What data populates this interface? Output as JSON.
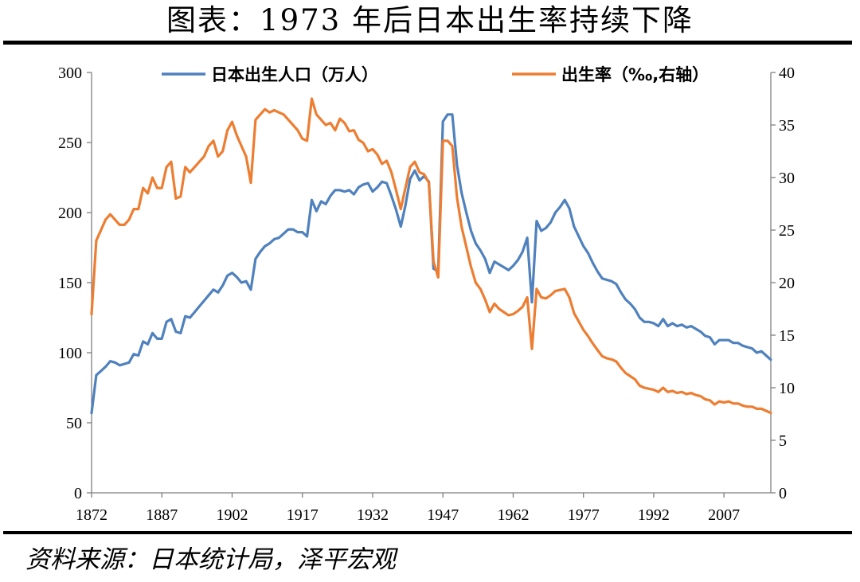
{
  "title": "图表：1973 年后日本出生率持续下降",
  "source": "资料来源：日本统计局，泽平宏观",
  "colors": {
    "births": "#4f81bd",
    "rate": "#ed7d31",
    "axis": "#7f7f7f"
  },
  "chart_data": {
    "type": "line",
    "legend": {
      "placement": "top"
    },
    "grid": false,
    "x_ticks": [
      1872,
      1887,
      1902,
      1917,
      1932,
      1947,
      1962,
      1977,
      1992,
      2007
    ],
    "xlim": [
      1872,
      2017
    ],
    "y_left": {
      "ticks": [
        0,
        50,
        100,
        150,
        200,
        250,
        300
      ],
      "range": [
        0,
        300
      ]
    },
    "y_right": {
      "ticks": [
        0,
        5,
        10,
        15,
        20,
        25,
        30,
        35,
        40
      ],
      "range": [
        0,
        40
      ]
    },
    "series": [
      {
        "name": "日本出生人口（万人）",
        "axis": "left",
        "points": [
          [
            1872,
            57
          ],
          [
            1873,
            84
          ],
          [
            1874,
            87
          ],
          [
            1875,
            90
          ],
          [
            1876,
            94
          ],
          [
            1877,
            93
          ],
          [
            1878,
            91
          ],
          [
            1879,
            92
          ],
          [
            1880,
            93
          ],
          [
            1881,
            99
          ],
          [
            1882,
            98
          ],
          [
            1883,
            108
          ],
          [
            1884,
            106
          ],
          [
            1885,
            114
          ],
          [
            1886,
            110
          ],
          [
            1887,
            110
          ],
          [
            1888,
            122
          ],
          [
            1889,
            124
          ],
          [
            1890,
            115
          ],
          [
            1891,
            114
          ],
          [
            1892,
            126
          ],
          [
            1893,
            125
          ],
          [
            1894,
            129
          ],
          [
            1895,
            133
          ],
          [
            1896,
            137
          ],
          [
            1897,
            141
          ],
          [
            1898,
            145
          ],
          [
            1899,
            143
          ],
          [
            1900,
            148
          ],
          [
            1901,
            155
          ],
          [
            1902,
            157
          ],
          [
            1903,
            154
          ],
          [
            1904,
            150
          ],
          [
            1905,
            151
          ],
          [
            1906,
            145
          ],
          [
            1907,
            167
          ],
          [
            1908,
            172
          ],
          [
            1909,
            176
          ],
          [
            1910,
            178
          ],
          [
            1911,
            181
          ],
          [
            1912,
            182
          ],
          [
            1913,
            185
          ],
          [
            1914,
            188
          ],
          [
            1915,
            188
          ],
          [
            1916,
            186
          ],
          [
            1917,
            186
          ],
          [
            1918,
            183
          ],
          [
            1919,
            209
          ],
          [
            1920,
            201
          ],
          [
            1921,
            208
          ],
          [
            1922,
            206
          ],
          [
            1923,
            212
          ],
          [
            1924,
            216
          ],
          [
            1925,
            216
          ],
          [
            1926,
            215
          ],
          [
            1927,
            216
          ],
          [
            1928,
            213
          ],
          [
            1929,
            218
          ],
          [
            1930,
            220
          ],
          [
            1931,
            221
          ],
          [
            1932,
            215
          ],
          [
            1933,
            218
          ],
          [
            1934,
            222
          ],
          [
            1935,
            221
          ],
          [
            1936,
            212
          ],
          [
            1937,
            202
          ],
          [
            1938,
            190
          ],
          [
            1939,
            205
          ],
          [
            1940,
            224
          ],
          [
            1941,
            230
          ],
          [
            1942,
            223
          ],
          [
            1943,
            226
          ],
          [
            1944,
            222
          ],
          [
            1945,
            160
          ],
          [
            1946,
            158
          ],
          [
            1947,
            265
          ],
          [
            1948,
            270
          ],
          [
            1949,
            270
          ],
          [
            1950,
            234
          ],
          [
            1951,
            214
          ],
          [
            1952,
            200
          ],
          [
            1953,
            187
          ],
          [
            1954,
            178
          ],
          [
            1955,
            173
          ],
          [
            1956,
            167
          ],
          [
            1957,
            157
          ],
          [
            1958,
            165
          ],
          [
            1959,
            163
          ],
          [
            1960,
            161
          ],
          [
            1961,
            159
          ],
          [
            1962,
            162
          ],
          [
            1963,
            166
          ],
          [
            1964,
            172
          ],
          [
            1965,
            182
          ],
          [
            1966,
            136
          ],
          [
            1967,
            194
          ],
          [
            1968,
            187
          ],
          [
            1969,
            189
          ],
          [
            1970,
            193
          ],
          [
            1971,
            200
          ],
          [
            1972,
            204
          ],
          [
            1973,
            209
          ],
          [
            1974,
            203
          ],
          [
            1975,
            190
          ],
          [
            1976,
            183
          ],
          [
            1977,
            176
          ],
          [
            1978,
            171
          ],
          [
            1979,
            164
          ],
          [
            1980,
            158
          ],
          [
            1981,
            153
          ],
          [
            1982,
            152
          ],
          [
            1983,
            151
          ],
          [
            1984,
            149
          ],
          [
            1985,
            143
          ],
          [
            1986,
            138
          ],
          [
            1987,
            135
          ],
          [
            1988,
            131
          ],
          [
            1989,
            125
          ],
          [
            1990,
            122
          ],
          [
            1991,
            122
          ],
          [
            1992,
            121
          ],
          [
            1993,
            119
          ],
          [
            1994,
            124
          ],
          [
            1995,
            119
          ],
          [
            1996,
            121
          ],
          [
            1997,
            119
          ],
          [
            1998,
            120
          ],
          [
            1999,
            118
          ],
          [
            2000,
            119
          ],
          [
            2001,
            117
          ],
          [
            2002,
            115
          ],
          [
            2003,
            112
          ],
          [
            2004,
            111
          ],
          [
            2005,
            106
          ],
          [
            2006,
            109
          ],
          [
            2007,
            109
          ],
          [
            2008,
            109
          ],
          [
            2009,
            107
          ],
          [
            2010,
            107
          ],
          [
            2011,
            105
          ],
          [
            2012,
            104
          ],
          [
            2013,
            103
          ],
          [
            2014,
            100
          ],
          [
            2015,
            101
          ],
          [
            2016,
            98
          ],
          [
            2017,
            95
          ]
        ]
      },
      {
        "name": "出生率（‰,右轴）",
        "axis": "right",
        "points": [
          [
            1872,
            17
          ],
          [
            1873,
            24
          ],
          [
            1874,
            25
          ],
          [
            1875,
            26
          ],
          [
            1876,
            26.5
          ],
          [
            1877,
            26
          ],
          [
            1878,
            25.5
          ],
          [
            1879,
            25.5
          ],
          [
            1880,
            26
          ],
          [
            1881,
            27
          ],
          [
            1882,
            27
          ],
          [
            1883,
            29
          ],
          [
            1884,
            28.5
          ],
          [
            1885,
            30
          ],
          [
            1886,
            29
          ],
          [
            1887,
            29
          ],
          [
            1888,
            31
          ],
          [
            1889,
            31.5
          ],
          [
            1890,
            28
          ],
          [
            1891,
            28.2
          ],
          [
            1892,
            31
          ],
          [
            1893,
            30.5
          ],
          [
            1894,
            31
          ],
          [
            1895,
            31.5
          ],
          [
            1896,
            32
          ],
          [
            1897,
            33
          ],
          [
            1898,
            33.5
          ],
          [
            1899,
            32
          ],
          [
            1900,
            32.5
          ],
          [
            1901,
            34.5
          ],
          [
            1902,
            35.3
          ],
          [
            1903,
            34
          ],
          [
            1904,
            33
          ],
          [
            1905,
            32
          ],
          [
            1906,
            29.5
          ],
          [
            1907,
            35.5
          ],
          [
            1908,
            36
          ],
          [
            1909,
            36.5
          ],
          [
            1910,
            36.2
          ],
          [
            1911,
            36.4
          ],
          [
            1912,
            36.2
          ],
          [
            1913,
            36
          ],
          [
            1914,
            35.5
          ],
          [
            1915,
            35
          ],
          [
            1916,
            34.5
          ],
          [
            1917,
            33.7
          ],
          [
            1918,
            33.5
          ],
          [
            1919,
            37.5
          ],
          [
            1920,
            36
          ],
          [
            1921,
            35.5
          ],
          [
            1922,
            35
          ],
          [
            1923,
            35.2
          ],
          [
            1924,
            34.5
          ],
          [
            1925,
            35.6
          ],
          [
            1926,
            35.2
          ],
          [
            1927,
            34.4
          ],
          [
            1928,
            34.5
          ],
          [
            1929,
            33.6
          ],
          [
            1930,
            33.3
          ],
          [
            1931,
            32.5
          ],
          [
            1932,
            32.7
          ],
          [
            1933,
            32.2
          ],
          [
            1934,
            31.3
          ],
          [
            1935,
            31.6
          ],
          [
            1936,
            30.5
          ],
          [
            1937,
            28.8
          ],
          [
            1938,
            27
          ],
          [
            1939,
            29
          ],
          [
            1940,
            31
          ],
          [
            1941,
            31.5
          ],
          [
            1942,
            30.5
          ],
          [
            1943,
            30.3
          ],
          [
            1944,
            29.5
          ],
          [
            1945,
            22
          ],
          [
            1946,
            20.5
          ],
          [
            1947,
            33.5
          ],
          [
            1948,
            33.5
          ],
          [
            1949,
            33
          ],
          [
            1950,
            28.1
          ],
          [
            1951,
            25.3
          ],
          [
            1952,
            23.4
          ],
          [
            1953,
            21.5
          ],
          [
            1954,
            20
          ],
          [
            1955,
            19.4
          ],
          [
            1956,
            18.4
          ],
          [
            1957,
            17.2
          ],
          [
            1958,
            18
          ],
          [
            1959,
            17.5
          ],
          [
            1960,
            17.2
          ],
          [
            1961,
            16.9
          ],
          [
            1962,
            17
          ],
          [
            1963,
            17.3
          ],
          [
            1964,
            17.7
          ],
          [
            1965,
            18.6
          ],
          [
            1966,
            13.7
          ],
          [
            1967,
            19.4
          ],
          [
            1968,
            18.6
          ],
          [
            1969,
            18.5
          ],
          [
            1970,
            18.8
          ],
          [
            1971,
            19.2
          ],
          [
            1972,
            19.3
          ],
          [
            1973,
            19.4
          ],
          [
            1974,
            18.6
          ],
          [
            1975,
            17.1
          ],
          [
            1976,
            16.3
          ],
          [
            1977,
            15.5
          ],
          [
            1978,
            14.9
          ],
          [
            1979,
            14.2
          ],
          [
            1980,
            13.6
          ],
          [
            1981,
            13
          ],
          [
            1982,
            12.8
          ],
          [
            1983,
            12.7
          ],
          [
            1984,
            12.5
          ],
          [
            1985,
            11.9
          ],
          [
            1986,
            11.4
          ],
          [
            1987,
            11.1
          ],
          [
            1988,
            10.8
          ],
          [
            1989,
            10.2
          ],
          [
            1990,
            10
          ],
          [
            1991,
            9.9
          ],
          [
            1992,
            9.8
          ],
          [
            1993,
            9.6
          ],
          [
            1994,
            10
          ],
          [
            1995,
            9.6
          ],
          [
            1996,
            9.7
          ],
          [
            1997,
            9.5
          ],
          [
            1998,
            9.6
          ],
          [
            1999,
            9.4
          ],
          [
            2000,
            9.5
          ],
          [
            2001,
            9.3
          ],
          [
            2002,
            9.2
          ],
          [
            2003,
            8.9
          ],
          [
            2004,
            8.8
          ],
          [
            2005,
            8.4
          ],
          [
            2006,
            8.7
          ],
          [
            2007,
            8.6
          ],
          [
            2008,
            8.7
          ],
          [
            2009,
            8.5
          ],
          [
            2010,
            8.5
          ],
          [
            2011,
            8.3
          ],
          [
            2012,
            8.2
          ],
          [
            2013,
            8.2
          ],
          [
            2014,
            8
          ],
          [
            2015,
            8
          ],
          [
            2016,
            7.8
          ],
          [
            2017,
            7.6
          ]
        ]
      }
    ]
  }
}
